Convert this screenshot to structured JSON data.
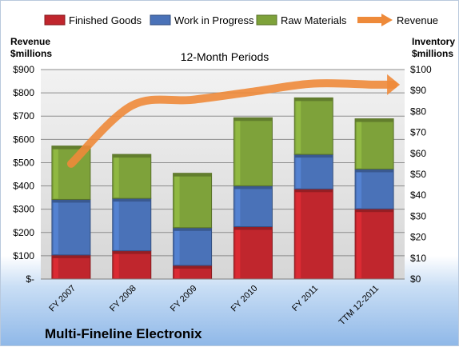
{
  "chart_data": {
    "type": "bar",
    "stacked": true,
    "title": "12-Month Periods",
    "company_name": "Multi-Fineline Electronix",
    "left_axis": {
      "title_line1": "Revenue",
      "title_line2": "$millions",
      "ylim": [
        0,
        900
      ],
      "ticks": [
        0,
        100,
        200,
        300,
        400,
        500,
        600,
        700,
        800,
        900
      ],
      "tick_labels": [
        "$-",
        "$100",
        "$200",
        "$300",
        "$400",
        "$500",
        "$600",
        "$700",
        "$800",
        "$900"
      ]
    },
    "right_axis": {
      "title_line1": "Inventory",
      "title_line2": "$millions",
      "ylim": [
        0,
        100
      ],
      "ticks": [
        0,
        10,
        20,
        30,
        40,
        50,
        60,
        70,
        80,
        90,
        100
      ],
      "tick_labels": [
        "$0",
        "$10",
        "$20",
        "$30",
        "$40",
        "$50",
        "$60",
        "$70",
        "$80",
        "$90",
        "$100"
      ]
    },
    "categories": [
      "FY 2007",
      "FY 2008",
      "FY 2009",
      "FY 2010",
      "FY 2011",
      "TTM 12-2011"
    ],
    "series": [
      {
        "name": "Finished Goods",
        "axis": "right",
        "color": "#c0262d",
        "values": [
          11.5,
          13.5,
          6.5,
          25,
          43,
          33.5
        ]
      },
      {
        "name": "Work in Progress",
        "axis": "right",
        "color": "#4a72b8",
        "values": [
          26.5,
          25,
          18,
          19.5,
          16.5,
          19
        ]
      },
      {
        "name": "Raw Materials",
        "axis": "right",
        "color": "#7ea23a",
        "values": [
          25.5,
          21,
          26,
          32.5,
          27,
          24
        ]
      },
      {
        "name": "Revenue",
        "axis": "left",
        "type": "line",
        "color": "#ee8a3a",
        "values": [
          495,
          745,
          770,
          805,
          840,
          835
        ]
      }
    ],
    "grid": true,
    "legend_position": "top"
  }
}
